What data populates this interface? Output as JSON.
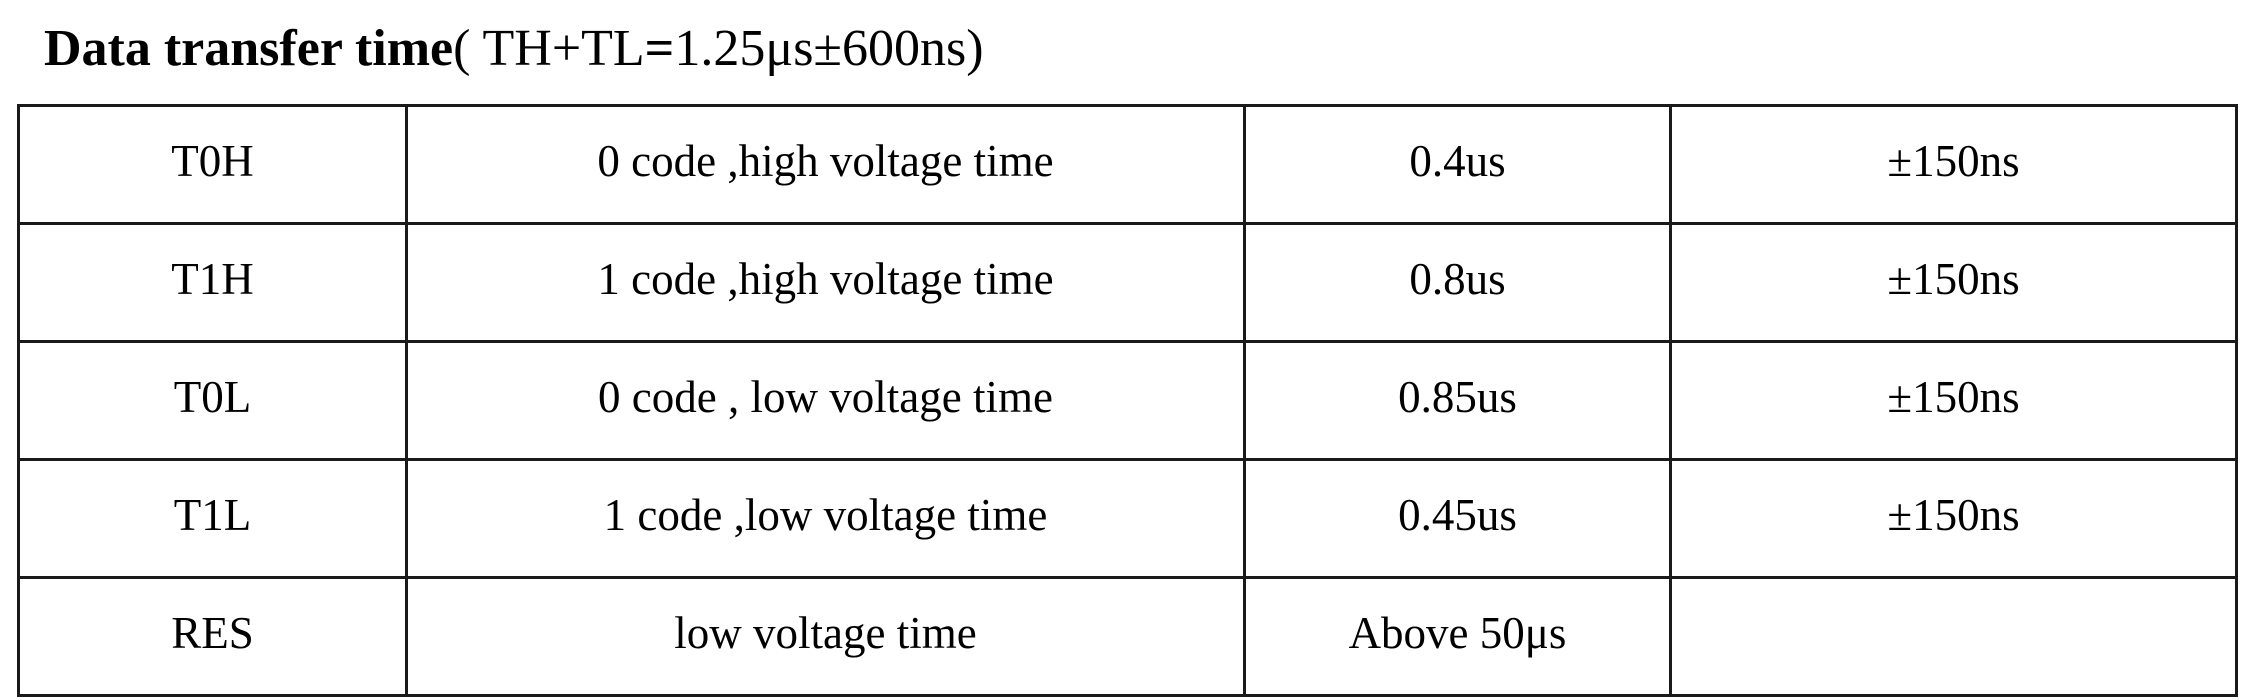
{
  "heading": {
    "title_bold": "Data transfer time",
    "title_open": "( TH+TL",
    "title_eq": "=",
    "title_value": "1.25μs±600ns)"
  },
  "table": {
    "rows": [
      {
        "name": "T0H",
        "description": "0 code ,high voltage time",
        "value": "0.4us",
        "tolerance": "±150ns"
      },
      {
        "name": "T1H",
        "description": "1 code ,high voltage time",
        "value": "0.8us",
        "tolerance": "±150ns"
      },
      {
        "name": "T0L",
        "description": "0 code , low voltage time",
        "value": "0.85us",
        "tolerance": "±150ns"
      },
      {
        "name": "T1L",
        "description": "1 code ,low voltage time",
        "value": "0.45us",
        "tolerance": "±150ns"
      },
      {
        "name": "RES",
        "description": "low voltage time",
        "value": "Above 50μs",
        "tolerance": ""
      }
    ]
  }
}
